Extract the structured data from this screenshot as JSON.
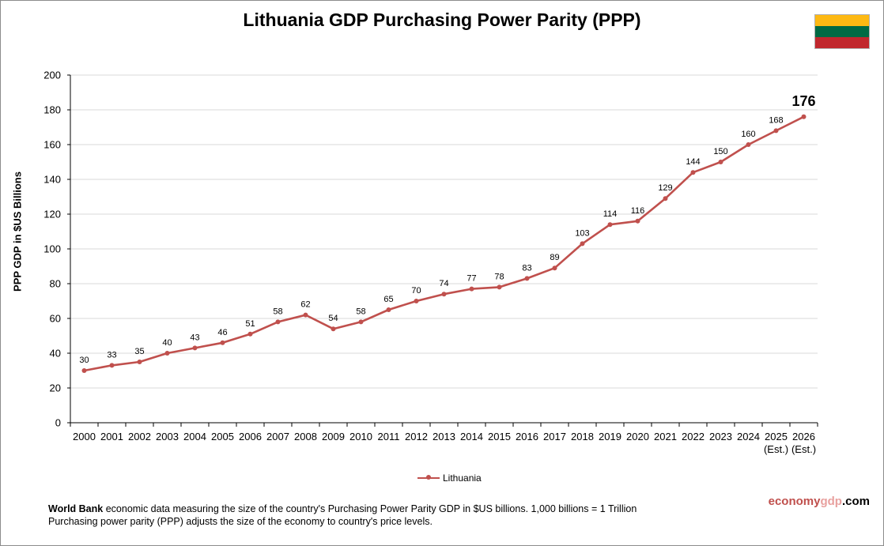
{
  "chart_data": {
    "type": "line",
    "title": "Lithuania GDP Purchasing Power Parity (PPP)",
    "ylabel": "PPP GDP in $US Billions",
    "xlabel": "",
    "ylim": [
      0,
      200
    ],
    "yticks": [
      0,
      20,
      40,
      60,
      80,
      100,
      120,
      140,
      160,
      180,
      200
    ],
    "grid": true,
    "legend_position": "bottom",
    "categories": [
      "2000",
      "2001",
      "2002",
      "2003",
      "2004",
      "2005",
      "2006",
      "2007",
      "2008",
      "2009",
      "2010",
      "2011",
      "2012",
      "2013",
      "2014",
      "2015",
      "2016",
      "2017",
      "2018",
      "2019",
      "2020",
      "2021",
      "2022",
      "2023",
      "2024",
      "2025",
      "2026"
    ],
    "category_sublabels": [
      "",
      "",
      "",
      "",
      "",
      "",
      "",
      "",
      "",
      "",
      "",
      "",
      "",
      "",
      "",
      "",
      "",
      "",
      "",
      "",
      "",
      "",
      "",
      "",
      "",
      "(Est.)",
      "(Est.)"
    ],
    "series": [
      {
        "name": "Lithuania",
        "color": "#c0504d",
        "values": [
          30,
          33,
          35,
          40,
          43,
          46,
          51,
          58,
          62,
          54,
          58,
          65,
          70,
          74,
          77,
          78,
          83,
          89,
          103,
          114,
          116,
          129,
          144,
          150,
          160,
          168,
          176
        ],
        "data_labels": [
          "30",
          "33",
          "35",
          "40",
          "43",
          "46",
          "51",
          "58",
          "62",
          "54",
          "58",
          "65",
          "70",
          "74",
          "77",
          "78",
          "83",
          "89",
          "103",
          "114",
          "116",
          "129",
          "144",
          "150",
          "160",
          "168",
          "176"
        ]
      }
    ]
  },
  "flag": {
    "colors": [
      "#fdb913",
      "#006a44",
      "#c1272d"
    ]
  },
  "footnote": {
    "source_bold": "World Bank",
    "line1_rest": " economic data measuring the size  of the country's Purchasing Power Parity GDP in $US billions. 1,000 billions = 1 Trillion",
    "line2": "Purchasing power parity (PPP)  adjusts the size  of the economy to country's price levels."
  },
  "brand": {
    "part1": "economy",
    "part2": "gdp",
    "part3": ".com",
    "color_main": "#c0504d",
    "color_accent": "#e8a09e"
  }
}
